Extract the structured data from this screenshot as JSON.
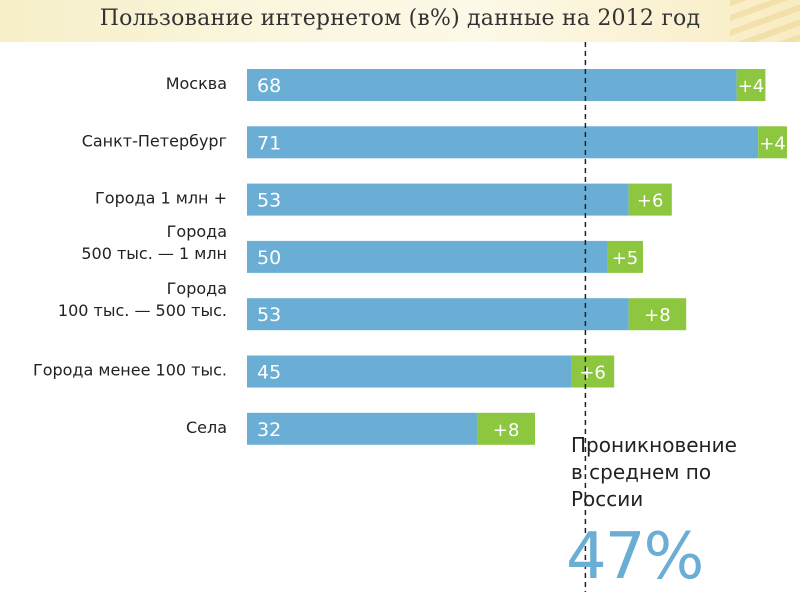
{
  "title": "Пользование интернетом (в%) данные на 2012 год",
  "colors": {
    "bar": "#6aaed6",
    "increment": "#8dc63f",
    "value_text": "#ffffff",
    "reference_line": "#222222"
  },
  "average_note": {
    "lines": [
      "Проникновение",
      "в среднем по",
      "России"
    ],
    "value": "47%"
  },
  "chart_data": {
    "type": "bar",
    "orientation": "horizontal",
    "stacked": true,
    "title": "Пользование интернетом (в%) данные на 2012 год",
    "categories": [
      [
        "Москва"
      ],
      [
        "Санкт-Петербург"
      ],
      [
        "Города 1 млн +"
      ],
      [
        "Города",
        "500 тыс. — 1 млн"
      ],
      [
        "Города",
        "100 тыс. — 500 тыс."
      ],
      [
        "Города менее 100 тыс."
      ],
      [
        "Села"
      ]
    ],
    "series": [
      {
        "values": [
          68,
          71,
          53,
          50,
          53,
          45,
          32
        ],
        "labels": [
          "68",
          "71",
          "53",
          "50",
          "53",
          "45",
          "32"
        ]
      },
      {
        "values": [
          4,
          4,
          6,
          5,
          8,
          6,
          8
        ],
        "labels": [
          "+4",
          "+4",
          "+6",
          "+5",
          "+8",
          "+6",
          "+8"
        ]
      }
    ],
    "reference_line": {
      "value": 47
    },
    "xlim": [
      0,
      75
    ],
    "grid": false,
    "legend": "none"
  }
}
